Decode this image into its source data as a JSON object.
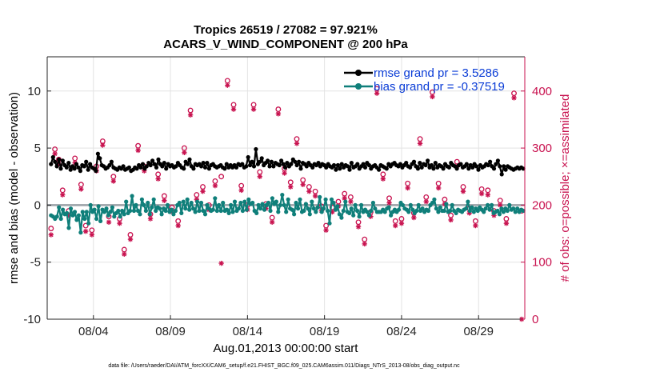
{
  "chart_data": {
    "type": "line",
    "title_line1": "Tropics 26519 / 27082 = 97.921%",
    "title_line2": "ACARS_V_WIND_COMPONENT @ 200 hPa",
    "xlabel": "Aug.01,2013 00:00:00 start",
    "ylabel_left": "rmse and bias (model - observation)",
    "ylabel_right": "# of obs: o=possible; ×=assimilated",
    "footnote": "data file: /Users/raeder/DAI/ATM_forcXX/CAM6_setup/f.e21.FHIST_BGC.f09_025.CAM6assim.011/Diags_NTrS_2013-08/obs_diag_output.nc",
    "xlim": [
      0,
      31
    ],
    "ylim_left": [
      -10,
      13
    ],
    "ylim_right": [
      0,
      460
    ],
    "x_ticks": [
      3,
      8,
      13,
      18,
      23,
      28
    ],
    "x_tick_labels": [
      "08/04",
      "08/09",
      "08/14",
      "08/19",
      "08/24",
      "08/29"
    ],
    "y_ticks_left": [
      -10,
      -5,
      0,
      5,
      10
    ],
    "y_ticks_right": [
      0,
      100,
      200,
      300,
      400
    ],
    "grid": true,
    "legend_position": "top-right",
    "legend": {
      "rmse": "rmse grand pr = 3.5286",
      "bias": "bias grand pr = -0.37519"
    },
    "colors": {
      "rmse": "#000000",
      "bias": "#0f7f7a",
      "obs": "#c8124f",
      "zero_line": "#9aa0a6"
    },
    "series": [
      {
        "name": "rmse",
        "values": [
          3.6,
          4.2,
          3.8,
          3.4,
          4.0,
          3.2,
          3.9,
          3.5,
          3.3,
          3.7,
          3.1,
          3.4,
          3.2,
          3.6,
          3.3,
          3.0,
          3.5,
          3.4,
          3.8,
          3.1,
          3.6,
          3.3,
          3.2,
          3.0,
          4.5,
          4.1,
          3.5,
          3.4,
          3.2,
          3.3,
          3.5,
          3.8,
          3.3,
          3.2,
          3.1,
          3.3,
          3.2,
          3.4,
          3.1,
          3.2,
          3.3,
          3.0,
          3.1,
          3.3,
          3.2,
          3.5,
          3.3,
          3.6,
          3.2,
          3.4,
          3.7,
          3.5,
          3.9,
          3.6,
          3.3,
          4.0,
          3.6,
          3.4,
          3.7,
          3.2,
          3.6,
          3.4,
          3.5,
          3.3,
          3.4,
          3.7,
          3.5,
          3.3,
          3.2,
          3.8,
          3.6,
          4.0,
          3.4,
          3.2,
          3.6,
          3.5,
          3.6,
          3.4,
          3.7,
          3.3,
          3.7,
          3.2,
          3.5,
          3.6,
          3.4,
          3.3,
          3.4,
          3.5,
          3.3,
          3.2,
          3.6,
          3.3,
          3.5,
          3.3,
          3.5,
          3.3,
          3.6,
          3.5,
          3.6,
          3.3,
          3.4,
          4.2,
          3.5,
          3.8,
          3.4,
          4.9,
          3.6,
          3.8,
          4.1,
          3.5,
          3.7,
          3.9,
          3.4,
          3.8,
          3.4,
          3.7,
          3.6,
          3.5,
          3.9,
          3.6,
          3.3,
          3.7,
          3.4,
          3.6,
          4.0,
          3.8,
          3.5,
          3.8,
          3.2,
          3.7,
          3.6,
          3.4,
          3.7,
          3.5,
          3.3,
          3.6,
          3.5,
          3.7,
          3.4,
          3.6,
          3.5,
          3.3,
          3.6,
          3.4,
          3.3,
          3.5,
          3.1,
          3.5,
          3.2,
          3.6,
          3.3,
          3.5,
          3.4,
          3.1,
          3.7,
          3.3,
          3.4,
          3.6,
          3.2,
          3.4,
          3.6,
          3.3,
          3.7,
          3.5,
          3.2,
          3.4,
          3.5,
          3.3,
          3.1,
          3.5,
          3.4,
          3.3,
          3.2,
          3.6,
          3.4,
          3.6,
          3.7,
          3.5,
          3.4,
          3.6,
          3.3,
          3.5,
          3.7,
          3.4,
          3.3,
          3.6,
          3.8,
          3.4,
          3.2,
          3.7,
          3.3,
          3.6,
          3.5,
          3.9,
          3.3,
          3.5,
          3.2,
          3.7,
          3.3,
          3.5,
          3.4,
          3.2,
          3.6,
          3.4,
          3.3,
          3.7,
          3.5,
          3.4,
          3.2,
          3.5,
          3.6,
          3.3,
          3.4,
          3.6,
          3.2,
          3.5,
          3.3,
          3.6,
          3.4,
          3.1,
          3.5,
          3.3,
          3.4,
          3.6,
          3.5,
          3.8,
          3.4,
          3.2,
          3.6,
          3.9,
          3.4,
          2.7,
          3.4,
          3.1,
          3.4,
          3.3,
          3.2,
          3.1,
          3.2,
          3.3,
          3.2,
          3.3,
          3.2
        ]
      },
      {
        "name": "bias",
        "values": [
          -0.9,
          -1.0,
          -1.2,
          -1.0,
          -0.2,
          -1.2,
          -0.4,
          -0.8,
          -0.7,
          -2.0,
          -0.3,
          -0.9,
          -0.6,
          -1.3,
          -0.9,
          -2.4,
          -0.6,
          -1.2,
          -0.6,
          -1.6,
          0.0,
          -0.6,
          -0.4,
          -1.2,
          -0.1,
          -1.4,
          -0.4,
          -0.6,
          -0.3,
          -0.9,
          -0.6,
          -0.2,
          -1.0,
          -0.7,
          -0.5,
          -1.0,
          -0.5,
          -0.8,
          0.3,
          -0.7,
          -0.5,
          0.8,
          -0.5,
          0.0,
          -0.5,
          -0.8,
          0.5,
          0.0,
          -0.5,
          0.2,
          -0.8,
          -0.2,
          0.5,
          -0.5,
          -0.2,
          -0.3,
          -0.8,
          -0.3,
          -0.5,
          0.0,
          -0.6,
          -0.4,
          -0.8,
          -0.5,
          0.0,
          0.2,
          -0.7,
          0.3,
          -0.3,
          0.5,
          -0.4,
          0.2,
          -0.3,
          -0.6,
          0.3,
          -0.5,
          0.2,
          -0.5,
          -0.8,
          0.0,
          -0.3,
          -0.5,
          -0.4,
          0.6,
          -0.5,
          0.0,
          -0.5,
          0.2,
          -0.5,
          -0.4,
          -0.7,
          0.0,
          -0.6,
          0.3,
          -0.5,
          -0.3,
          0.2,
          -0.5,
          0.3,
          -0.4,
          0.5,
          0.1,
          0.2,
          -0.5,
          -0.7,
          0.0,
          -0.3,
          0.1,
          -0.4,
          0.0,
          0.2,
          -0.5,
          0.6,
          0.1,
          0.3,
          -0.6,
          0.0,
          0.9,
          0.0,
          -0.6,
          0.5,
          -0.3,
          -0.4,
          -0.8,
          0.2,
          -0.3,
          0.5,
          -0.6,
          -0.5,
          0.1,
          -0.3,
          -0.8,
          0.3,
          -0.3,
          -0.6,
          -0.2,
          0.7,
          -0.6,
          -0.3,
          0.5,
          -0.5,
          -1.6,
          0.5,
          0.2,
          -0.4,
          -0.1,
          -0.8,
          -1.1,
          -0.5,
          0.3,
          -0.6,
          -0.7,
          -0.3,
          -0.9,
          0.0,
          -0.5,
          -1.0,
          0.0,
          -0.6,
          -0.4,
          -0.6,
          -0.9,
          -0.5,
          0.2,
          -0.3,
          -0.6,
          -0.6,
          -0.6,
          -0.4,
          -0.6,
          -0.3,
          -0.2,
          -0.9,
          -0.6,
          -0.4,
          -0.6,
          -0.4,
          0.2,
          0.0,
          -0.3,
          -0.4,
          -0.6,
          0.0,
          -0.4,
          -0.7,
          -0.5,
          0.0,
          -0.5,
          -0.3,
          -0.6,
          -0.4,
          -0.5,
          0.0,
          0.2,
          0.5,
          -0.3,
          -0.6,
          -0.2,
          -0.5,
          -0.5,
          0.1,
          -0.6,
          -0.5,
          0.0,
          -0.5,
          -0.7,
          -0.4,
          -0.5,
          -0.6,
          -0.4,
          -0.3,
          0.3,
          -0.5,
          -0.2,
          -0.6,
          -0.3,
          -0.5,
          -0.2,
          -0.4,
          -0.6,
          -0.3,
          0.0,
          -0.4,
          0.0,
          -0.7,
          -0.6,
          -0.5,
          -0.8,
          -0.3,
          -0.6,
          -0.3,
          -0.5,
          0.0,
          -0.4,
          -0.3,
          -0.6,
          -0.3,
          -0.6,
          -0.4,
          -0.5
        ]
      },
      {
        "name": "obs_possible",
        "points": [
          [
            0.25,
            159
          ],
          [
            0.5,
            298
          ],
          [
            0.75,
            280
          ],
          [
            1.0,
            226
          ],
          [
            1.4,
            190
          ],
          [
            1.8,
            282
          ],
          [
            2.2,
            236
          ],
          [
            2.5,
            164
          ],
          [
            2.9,
            156
          ],
          [
            3.2,
            268
          ],
          [
            3.6,
            312
          ],
          [
            4.0,
            180
          ],
          [
            4.3,
            250
          ],
          [
            4.7,
            176
          ],
          [
            5.0,
            122
          ],
          [
            5.4,
            148
          ],
          [
            5.9,
            304
          ],
          [
            6.3,
            268
          ],
          [
            6.7,
            184
          ],
          [
            7.2,
            254
          ],
          [
            7.6,
            216
          ],
          [
            8.1,
            196
          ],
          [
            8.5,
            172
          ],
          [
            8.9,
            300
          ],
          [
            9.3,
            366
          ],
          [
            9.7,
            218
          ],
          [
            10.1,
            232
          ],
          [
            10.5,
            200
          ],
          [
            10.9,
            242
          ],
          [
            11.3,
            250
          ],
          [
            11.7,
            418
          ],
          [
            12.1,
            376
          ],
          [
            12.6,
            234
          ],
          [
            13.0,
            200
          ],
          [
            13.4,
            376
          ],
          [
            13.8,
            258
          ],
          [
            14.2,
            202
          ],
          [
            14.6,
            178
          ],
          [
            15.0,
            368
          ],
          [
            15.4,
            264
          ],
          [
            15.8,
            240
          ],
          [
            16.2,
            316
          ],
          [
            16.6,
            244
          ],
          [
            17.0,
            232
          ],
          [
            17.4,
            224
          ],
          [
            17.8,
            198
          ],
          [
            18.1,
            164
          ],
          [
            18.5,
            196
          ],
          [
            18.9,
            206
          ],
          [
            19.3,
            220
          ],
          [
            19.7,
            214
          ],
          [
            20.2,
            170
          ],
          [
            20.6,
            140
          ],
          [
            21.0,
            188
          ],
          [
            21.4,
            404
          ],
          [
            21.8,
            254
          ],
          [
            22.2,
            212
          ],
          [
            22.6,
            172
          ],
          [
            23.0,
            176
          ],
          [
            23.4,
            238
          ],
          [
            23.8,
            186
          ],
          [
            24.2,
            316
          ],
          [
            24.6,
            214
          ],
          [
            25.0,
            398
          ],
          [
            25.4,
            238
          ],
          [
            25.8,
            210
          ],
          [
            26.2,
            182
          ],
          [
            26.6,
            276
          ],
          [
            27.0,
            232
          ],
          [
            27.4,
            194
          ],
          [
            27.8,
            172
          ],
          [
            28.2,
            228
          ],
          [
            28.6,
            226
          ],
          [
            29.0,
            190
          ],
          [
            29.4,
            208
          ],
          [
            29.8,
            176
          ],
          [
            30.3,
            396
          ],
          [
            30.8,
            190
          ]
        ]
      },
      {
        "name": "obs_assimilated",
        "points": [
          [
            0.25,
            148
          ],
          [
            0.5,
            290
          ],
          [
            0.75,
            272
          ],
          [
            1.0,
            218
          ],
          [
            1.4,
            182
          ],
          [
            1.8,
            274
          ],
          [
            2.2,
            228
          ],
          [
            2.5,
            154
          ],
          [
            2.9,
            148
          ],
          [
            3.2,
            260
          ],
          [
            3.6,
            305
          ],
          [
            4.0,
            170
          ],
          [
            4.3,
            242
          ],
          [
            4.7,
            168
          ],
          [
            5.0,
            114
          ],
          [
            5.4,
            140
          ],
          [
            5.9,
            296
          ],
          [
            6.3,
            260
          ],
          [
            6.7,
            176
          ],
          [
            7.2,
            246
          ],
          [
            7.6,
            208
          ],
          [
            8.1,
            188
          ],
          [
            8.5,
            164
          ],
          [
            8.9,
            292
          ],
          [
            9.3,
            358
          ],
          [
            9.7,
            210
          ],
          [
            10.1,
            224
          ],
          [
            10.5,
            192
          ],
          [
            10.9,
            234
          ],
          [
            11.3,
            98
          ],
          [
            11.7,
            410
          ],
          [
            12.1,
            368
          ],
          [
            12.6,
            226
          ],
          [
            13.0,
            192
          ],
          [
            13.4,
            368
          ],
          [
            13.8,
            250
          ],
          [
            14.2,
            194
          ],
          [
            14.6,
            170
          ],
          [
            15.0,
            360
          ],
          [
            15.4,
            256
          ],
          [
            15.8,
            232
          ],
          [
            16.2,
            308
          ],
          [
            16.6,
            236
          ],
          [
            17.0,
            224
          ],
          [
            17.4,
            216
          ],
          [
            17.8,
            190
          ],
          [
            18.1,
            156
          ],
          [
            18.5,
            188
          ],
          [
            18.9,
            198
          ],
          [
            19.3,
            212
          ],
          [
            19.7,
            206
          ],
          [
            20.2,
            162
          ],
          [
            20.6,
            132
          ],
          [
            21.0,
            180
          ],
          [
            21.4,
            396
          ],
          [
            21.8,
            246
          ],
          [
            22.2,
            204
          ],
          [
            22.6,
            164
          ],
          [
            23.0,
            168
          ],
          [
            23.4,
            230
          ],
          [
            23.8,
            178
          ],
          [
            24.2,
            308
          ],
          [
            24.6,
            206
          ],
          [
            25.0,
            390
          ],
          [
            25.4,
            230
          ],
          [
            25.8,
            202
          ],
          [
            26.2,
            174
          ],
          [
            26.6,
            268
          ],
          [
            27.0,
            224
          ],
          [
            27.4,
            186
          ],
          [
            27.8,
            164
          ],
          [
            28.2,
            220
          ],
          [
            28.6,
            218
          ],
          [
            29.0,
            182
          ],
          [
            29.4,
            200
          ],
          [
            29.8,
            168
          ],
          [
            30.3,
            388
          ],
          [
            30.8,
            0
          ]
        ]
      }
    ]
  }
}
